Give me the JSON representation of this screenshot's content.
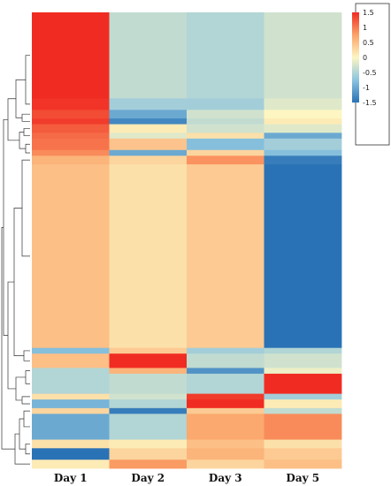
{
  "chart_data": {
    "type": "heatmap",
    "title": "",
    "xlabel": "",
    "ylabel": "",
    "columns": [
      "Day 1",
      "Day 2",
      "Day 3",
      "Day 5"
    ],
    "color_scale": {
      "min": -1.5,
      "max": 1.5,
      "ticks": [
        1.5,
        1,
        0.5,
        0,
        -0.5,
        -1,
        -1.5
      ],
      "tick_labels": [
        "1.5",
        "1",
        "0.5",
        "0",
        "-0.5",
        "-1",
        "-1.5"
      ],
      "stops": [
        {
          "value": -1.5,
          "color": "#2a72b6"
        },
        {
          "value": -0.75,
          "color": "#8cc4df"
        },
        {
          "value": 0,
          "color": "#fdf6c2"
        },
        {
          "value": 0.75,
          "color": "#fba368"
        },
        {
          "value": 1.5,
          "color": "#f02c22"
        }
      ]
    },
    "dendrogram": "left",
    "legend_position": "top-right",
    "row_blocks": [
      {
        "rows": 30,
        "values": [
          1.5,
          -0.4,
          -0.5,
          -0.3
        ]
      },
      {
        "rows": 4,
        "values": [
          1.45,
          -0.6,
          -0.6,
          -0.2
        ]
      },
      {
        "rows": 3,
        "values": [
          1.3,
          -1.0,
          -0.3,
          0.0
        ]
      },
      {
        "rows": 2,
        "values": [
          1.4,
          -1.3,
          -0.4,
          0.1
        ]
      },
      {
        "rows": 3,
        "values": [
          1.2,
          0.1,
          -0.3,
          -0.2
        ]
      },
      {
        "rows": 2,
        "values": [
          1.1,
          -0.2,
          0.2,
          -1.0
        ]
      },
      {
        "rows": 4,
        "values": [
          1.05,
          0.45,
          -0.8,
          -0.6
        ]
      },
      {
        "rows": 2,
        "values": [
          0.9,
          -1.0,
          0.3,
          -0.8
        ]
      },
      {
        "rows": 3,
        "values": [
          0.6,
          0.3,
          0.85,
          -1.4
        ]
      },
      {
        "rows": 64,
        "values": [
          0.5,
          0.2,
          0.4,
          -1.5
        ]
      },
      {
        "rows": 2,
        "values": [
          -0.8,
          0.4,
          -0.6,
          -0.5
        ]
      },
      {
        "rows": 5,
        "values": [
          0.5,
          1.5,
          -0.4,
          -0.3
        ]
      },
      {
        "rows": 2,
        "values": [
          -0.5,
          0.6,
          -1.2,
          -0.1
        ]
      },
      {
        "rows": 7,
        "values": [
          -0.5,
          -0.4,
          -0.5,
          1.5
        ]
      },
      {
        "rows": 2,
        "values": [
          0.2,
          -0.3,
          1.4,
          -0.6
        ]
      },
      {
        "rows": 3,
        "values": [
          -0.9,
          -0.5,
          1.5,
          0.1
        ]
      },
      {
        "rows": 2,
        "values": [
          0.3,
          -1.4,
          0.4,
          -0.4
        ]
      },
      {
        "rows": 9,
        "values": [
          -1.0,
          -0.5,
          0.7,
          0.9
        ]
      },
      {
        "rows": 3,
        "values": [
          0.2,
          0.1,
          0.5,
          0.2
        ]
      },
      {
        "rows": 4,
        "values": [
          -1.5,
          0.3,
          0.6,
          0.4
        ]
      },
      {
        "rows": 3,
        "values": [
          0.1,
          0.8,
          0.3,
          0.5
        ]
      }
    ]
  }
}
